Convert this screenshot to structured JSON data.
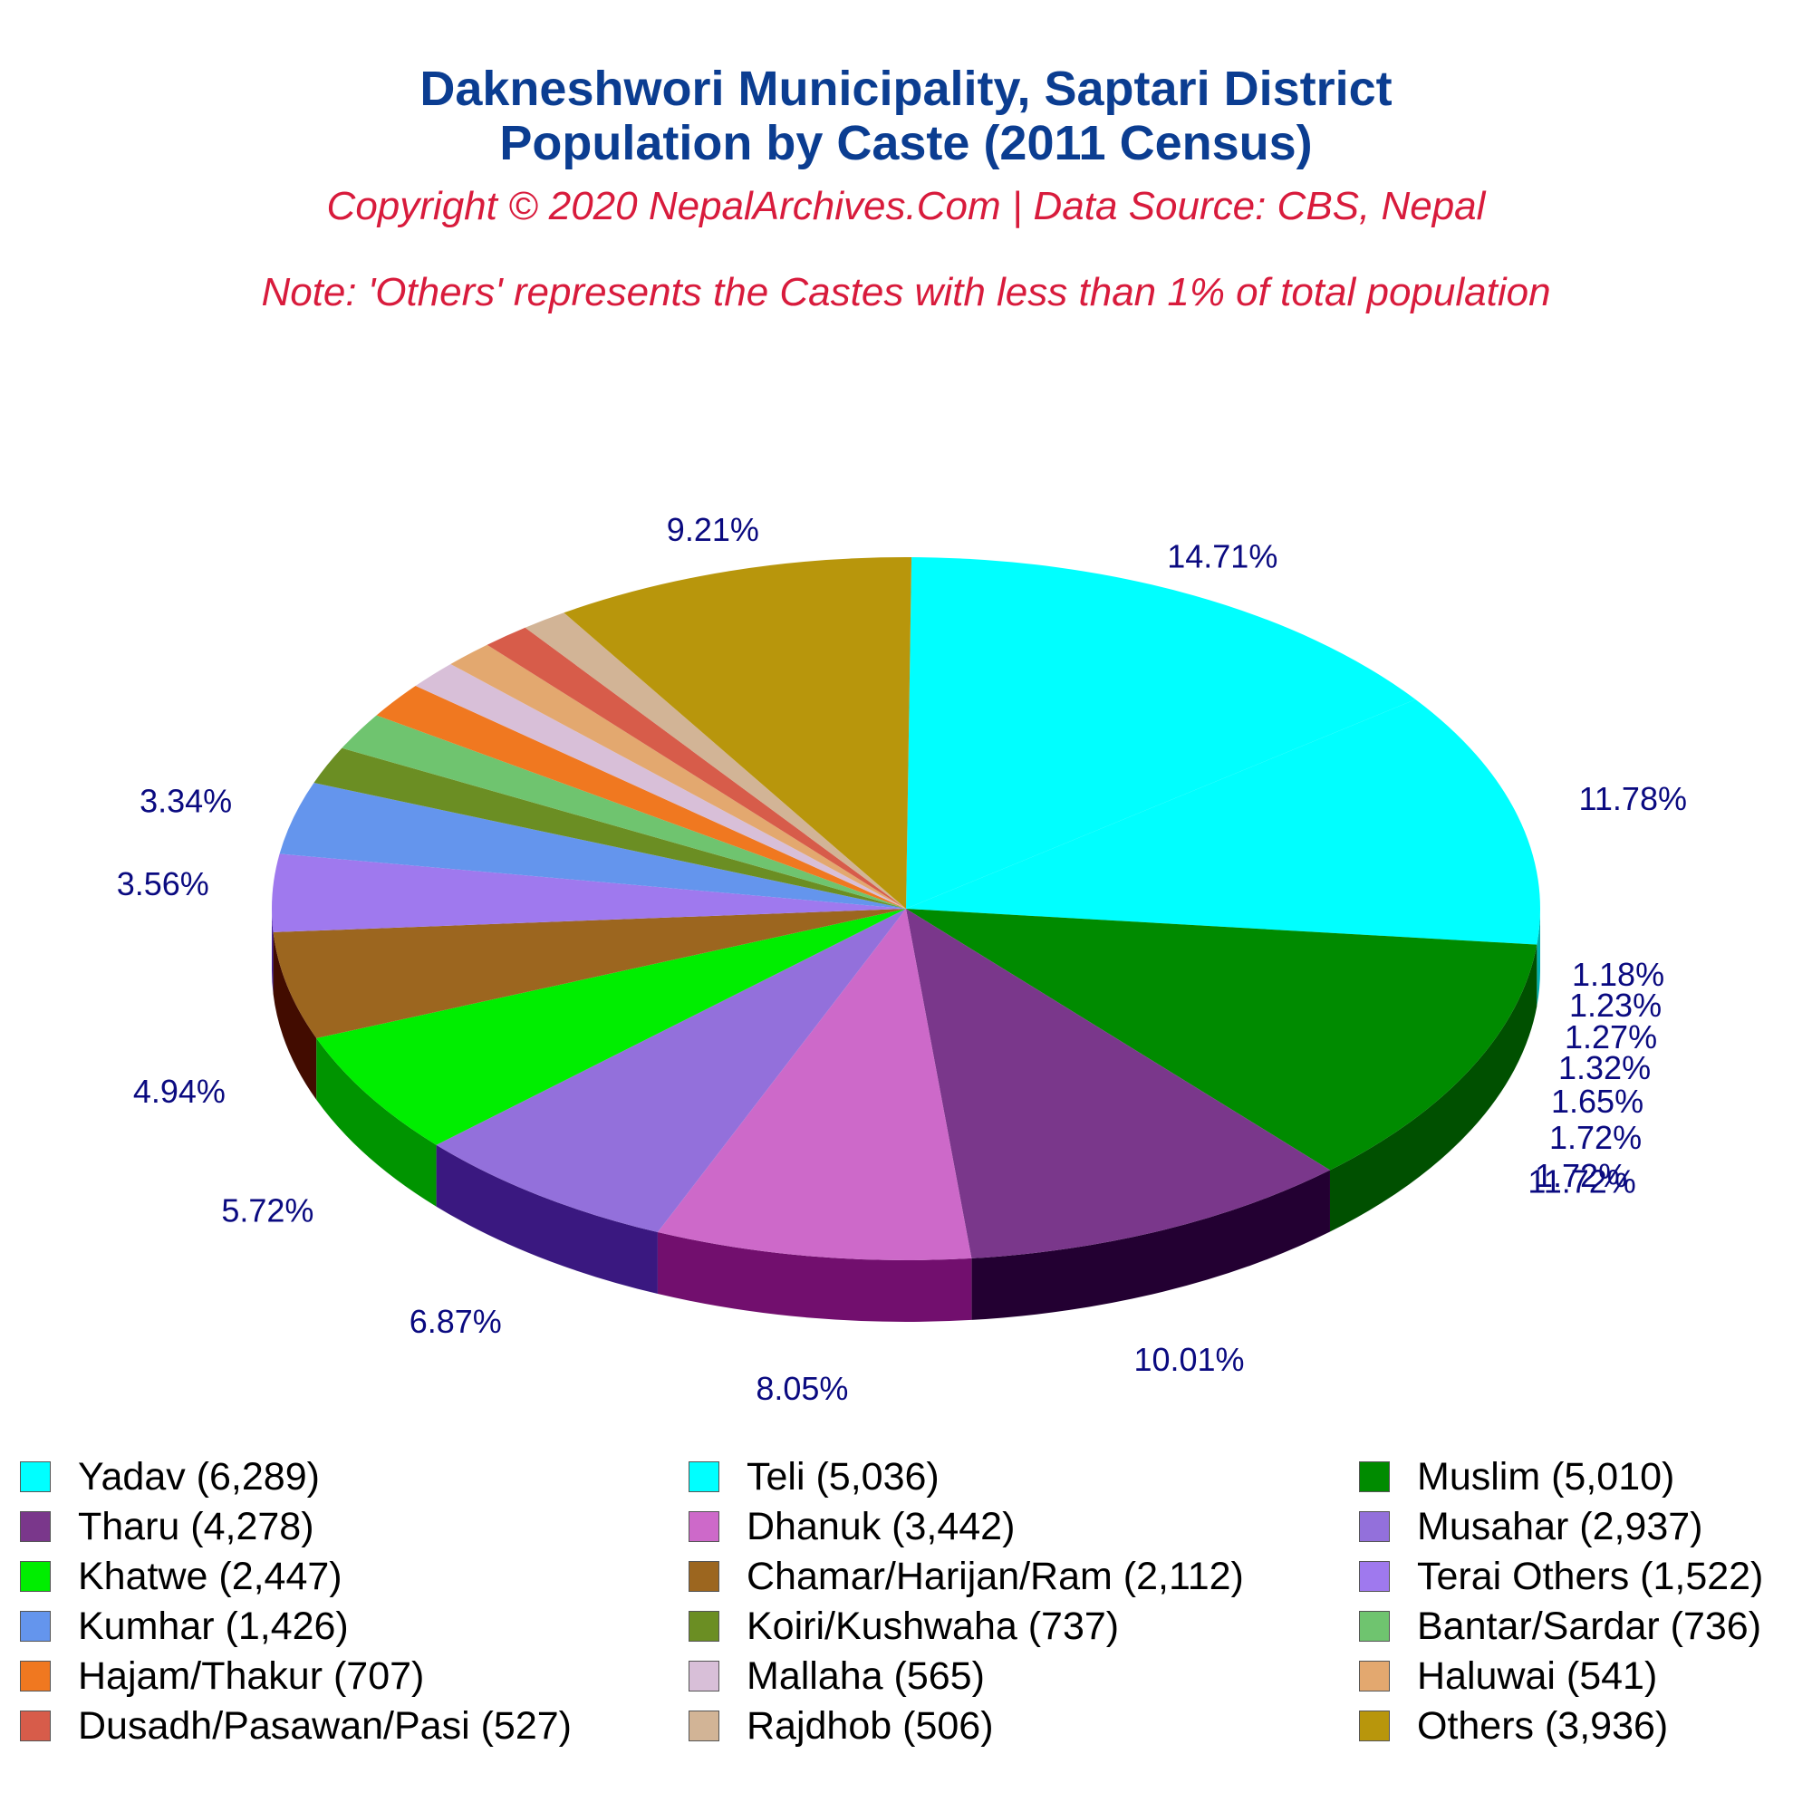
{
  "title_line1": "Dakneshwori Municipality, Saptari District",
  "title_line2": "Population by Caste (2011 Census)",
  "subtitle": "Copyright © 2020 NepalArchives.Com | Data Source: CBS, Nepal",
  "note": "Note: 'Others' represents the Castes with less than 1% of total population",
  "chart_data": {
    "type": "pie",
    "style": "3d-exploded-tilted",
    "legend_position": "bottom",
    "slices": [
      {
        "label": "Yadav (6,289)",
        "name": "Yadav",
        "value": 6289,
        "percent": "14.71%",
        "color": "#00ffff",
        "side": "#00b0b0"
      },
      {
        "label": "Teli (5,036)",
        "name": "Teli",
        "value": 5036,
        "percent": "11.78%",
        "color": "#00ffff",
        "side": "#00b0b0"
      },
      {
        "label": "Muslim (5,010)",
        "name": "Muslim",
        "value": 5010,
        "percent": "11.72%",
        "color": "#008b00",
        "side": "#005000"
      },
      {
        "label": "Tharu (4,278)",
        "name": "Tharu",
        "value": 4278,
        "percent": "10.01%",
        "color": "#7a378b",
        "side": "#230032"
      },
      {
        "label": "Dhanuk (3,442)",
        "name": "Dhanuk",
        "value": 3442,
        "percent": "8.05%",
        "color": "#cd69c9",
        "side": "#720f6e"
      },
      {
        "label": "Musahar (2,937)",
        "name": "Musahar",
        "value": 2937,
        "percent": "6.87%",
        "color": "#9370db",
        "side": "#3a1880"
      },
      {
        "label": "Khatwe (2,447)",
        "name": "Khatwe",
        "value": 2447,
        "percent": "5.72%",
        "color": "#00ee00",
        "side": "#009400"
      },
      {
        "label": "Chamar/Harijan/Ram (2,112)",
        "name": "Chamar/Harijan/Ram",
        "value": 2112,
        "percent": "4.94%",
        "color": "#9c661f",
        "side": "#420c00"
      },
      {
        "label": "Terai Others (1,522)",
        "name": "Terai Others",
        "value": 1522,
        "percent": "3.56%",
        "color": "#9f79ee",
        "side": "#44209a"
      },
      {
        "label": "Kumhar (1,426)",
        "name": "Kumhar",
        "value": 1426,
        "percent": "3.34%",
        "color": "#6495ed",
        "side": "#0a3a93"
      },
      {
        "label": "Koiri/Kushwaha (737)",
        "name": "Koiri/Kushwaha",
        "value": 737,
        "percent": "1.72%",
        "color": "#6b8e23",
        "side": "#123400"
      },
      {
        "label": "Bantar/Sardar (736)",
        "name": "Bantar/Sardar",
        "value": 736,
        "percent": "1.72%",
        "color": "#6fc46f",
        "side": "#176a17"
      },
      {
        "label": "Hajam/Thakur (707)",
        "name": "Hajam/Thakur",
        "value": 707,
        "percent": "1.65%",
        "color": "#f07820",
        "side": "#961e00"
      },
      {
        "label": "Mallaha (565)",
        "name": "Mallaha",
        "value": 565,
        "percent": "1.32%",
        "color": "#d8bfd8",
        "side": "#7e657e"
      },
      {
        "label": "Haluwai (541)",
        "name": "Haluwai",
        "value": 541,
        "percent": "1.27%",
        "color": "#e3a86f",
        "side": "#894e15"
      },
      {
        "label": "Dusadh/Pasawan/Pasi (527)",
        "name": "Dusadh/Pasawan/Pasi",
        "value": 527,
        "percent": "1.23%",
        "color": "#d75c4a",
        "side": "#7d0200"
      },
      {
        "label": "Rajdhob (506)",
        "name": "Rajdhob",
        "value": 506,
        "percent": "1.18%",
        "color": "#d2b496",
        "side": "#785a3c"
      },
      {
        "label": "Others (3,936)",
        "name": "Others",
        "value": 3936,
        "percent": "9.21%",
        "color": "#b8960c",
        "side": "#5e3c00"
      }
    ]
  }
}
